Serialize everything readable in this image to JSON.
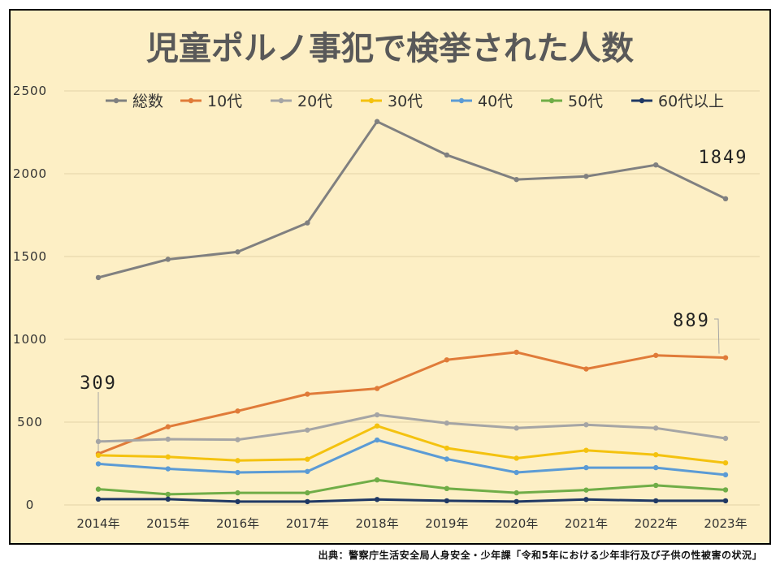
{
  "chart_data": {
    "type": "line",
    "title": "児童ポルノ事犯で検挙された人数",
    "categories": [
      "2014年",
      "2015年",
      "2016年",
      "2017年",
      "2018年",
      "2019年",
      "2020年",
      "2021年",
      "2022年",
      "2023年"
    ],
    "ylim": [
      0,
      2500
    ],
    "yticks": [
      0,
      500,
      1000,
      1500,
      2000,
      2500
    ],
    "grid": true,
    "legend_position": "top",
    "series": [
      {
        "name": "総数",
        "color": "#808080",
        "values": [
          1373,
          1483,
          1528,
          1703,
          2315,
          2113,
          1965,
          1984,
          2053,
          1849
        ]
      },
      {
        "name": "10代",
        "color": "#e07b39",
        "values": [
          309,
          472,
          567,
          669,
          703,
          876,
          922,
          821,
          903,
          889
        ]
      },
      {
        "name": "20代",
        "color": "#a5a5a5",
        "values": [
          383,
          397,
          394,
          452,
          544,
          494,
          464,
          484,
          464,
          402
        ]
      },
      {
        "name": "30代",
        "color": "#f4c20f",
        "values": [
          300,
          290,
          268,
          276,
          477,
          343,
          282,
          330,
          303,
          254
        ]
      },
      {
        "name": "40代",
        "color": "#5b9bd5",
        "values": [
          248,
          218,
          196,
          202,
          392,
          277,
          196,
          225,
          225,
          182
        ]
      },
      {
        "name": "50代",
        "color": "#70ad47",
        "values": [
          95,
          64,
          73,
          73,
          151,
          99,
          73,
          90,
          118,
          91
        ]
      },
      {
        "name": "60代以上",
        "color": "#1f3864",
        "values": [
          35,
          35,
          20,
          20,
          33,
          25,
          20,
          33,
          25,
          25
        ]
      }
    ],
    "annotations": [
      {
        "text": "1849",
        "series": 0,
        "index": 9
      },
      {
        "text": "889",
        "series": 1,
        "index": 9
      },
      {
        "text": "309",
        "series": 1,
        "index": 0
      }
    ]
  },
  "source": "出典：警察庁生活安全局人身安全・少年課「令和5年における少年非行及び子供の性被害の状況」"
}
